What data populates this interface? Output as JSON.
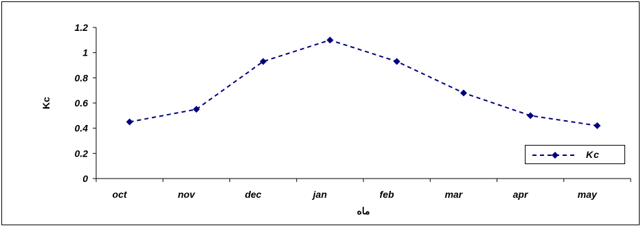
{
  "chart_data": {
    "type": "line",
    "categories": [
      "oct",
      "nov",
      "dec",
      "jan",
      "feb",
      "mar",
      "apr",
      "may"
    ],
    "series": [
      {
        "name": "Kc",
        "values": [
          0.45,
          0.55,
          0.93,
          1.1,
          0.93,
          0.68,
          0.5,
          0.42
        ],
        "color": "#00007f",
        "line_style": "dashed",
        "marker": "diamond"
      }
    ],
    "ylabel": "Kc",
    "xlabel": "ماه",
    "ylim": [
      0,
      1.2
    ],
    "yticks": [
      "0",
      "0.2",
      "0.4",
      "0.6",
      "0.8",
      "1",
      "1.2"
    ],
    "grid": false,
    "legend_position": "bottom-right"
  }
}
